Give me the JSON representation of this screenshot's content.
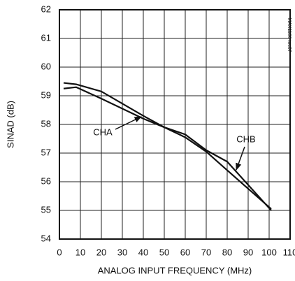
{
  "chart_data": {
    "type": "line",
    "x_label": "ANALOG INPUT FREQUENCY (MHz)",
    "y_label": "SINAD (dB)",
    "annotations": [
      "MAX1186 toc07"
    ],
    "xlim": [
      0,
      110
    ],
    "xticks": [
      0,
      10,
      20,
      30,
      40,
      50,
      60,
      70,
      80,
      90,
      100,
      110
    ],
    "ylim": [
      54,
      62
    ],
    "yticks": [
      54,
      55,
      56,
      57,
      58,
      59,
      60,
      61,
      62
    ],
    "grid": true,
    "series": [
      {
        "name": "CHA",
        "color": "#111111",
        "x": [
          2,
          8,
          20,
          40,
          50,
          60,
          70,
          80,
          101
        ],
        "values": [
          59.25,
          59.3,
          58.9,
          58.2,
          57.9,
          57.55,
          57.05,
          56.4,
          55.05
        ]
      },
      {
        "name": "CHB",
        "color": "#111111",
        "x": [
          2,
          8,
          20,
          40,
          50,
          60,
          70,
          80,
          101
        ],
        "values": [
          59.45,
          59.4,
          59.15,
          58.3,
          57.9,
          57.65,
          57.1,
          56.7,
          55.0
        ]
      }
    ]
  }
}
